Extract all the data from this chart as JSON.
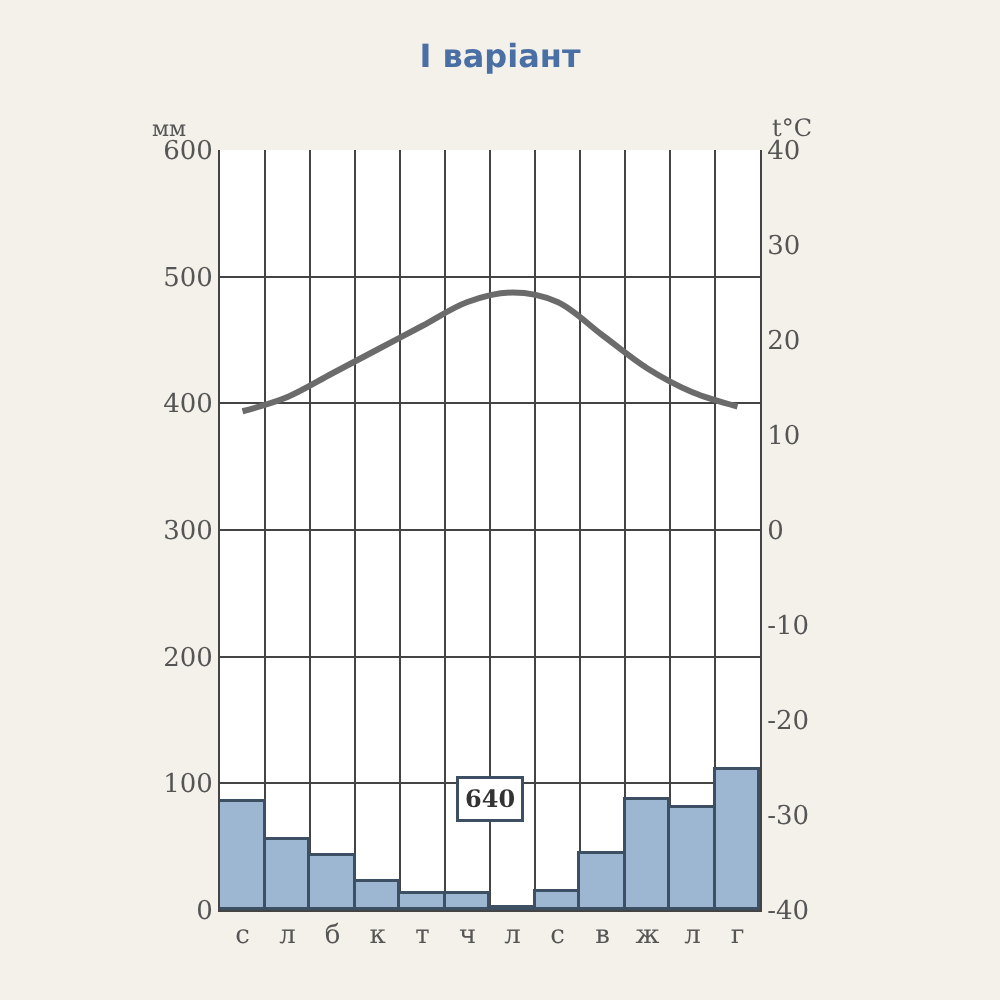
{
  "chart_data": {
    "type": "bar",
    "title": "І варіант",
    "ylabel": "мм",
    "y2label": "t°C",
    "categories": [
      "с",
      "л",
      "б",
      "к",
      "т",
      "ч",
      "л",
      "с",
      "в",
      "ж",
      "л",
      "г"
    ],
    "series": [
      {
        "color": "#9db7d3",
        "values": [
          85,
          55,
          43,
          22,
          13,
          13,
          2,
          15,
          45,
          87,
          80,
          110
        ]
      },
      {
        "type": "line",
        "axis": "y2",
        "color": "#6b6b6b",
        "values": [
          12.5,
          14,
          16.5,
          19,
          21.5,
          24,
          25,
          24,
          20.5,
          17,
          14.5,
          13
        ]
      }
    ],
    "ylim": [
      0,
      600
    ],
    "yticks": [
      0,
      100,
      200,
      300,
      400,
      500,
      600
    ],
    "y2lim": [
      -40,
      40
    ],
    "y2ticks": [
      -40,
      -30,
      -20,
      -10,
      0,
      10,
      20,
      30,
      40
    ],
    "grid": true,
    "marker": "none",
    "line_style": "solid",
    "annotations": [
      "640"
    ]
  }
}
